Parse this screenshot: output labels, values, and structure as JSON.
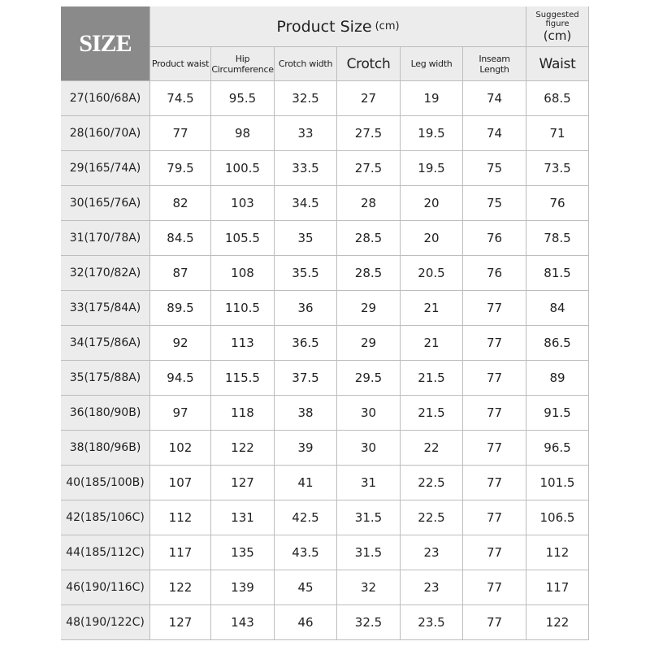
{
  "header": {
    "size": "SIZE",
    "product_size": "Product Size",
    "product_size_unit": "(cm)",
    "suggested": "Suggested figure",
    "suggested_unit": "(cm)",
    "columns": [
      "Product waist",
      "Hip Circumference",
      "Crotch width",
      "Crotch",
      "Leg width",
      "Inseam Length",
      "Waist"
    ]
  },
  "table": {
    "rows": [
      [
        "27(160/68A)",
        "74.5",
        "95.5",
        "32.5",
        "27",
        "19",
        "74",
        "68.5"
      ],
      [
        "28(160/70A)",
        "77",
        "98",
        "33",
        "27.5",
        "19.5",
        "74",
        "71"
      ],
      [
        "29(165/74A)",
        "79.5",
        "100.5",
        "33.5",
        "27.5",
        "19.5",
        "75",
        "73.5"
      ],
      [
        "30(165/76A)",
        "82",
        "103",
        "34.5",
        "28",
        "20",
        "75",
        "76"
      ],
      [
        "31(170/78A)",
        "84.5",
        "105.5",
        "35",
        "28.5",
        "20",
        "76",
        "78.5"
      ],
      [
        "32(170/82A)",
        "87",
        "108",
        "35.5",
        "28.5",
        "20.5",
        "76",
        "81.5"
      ],
      [
        "33(175/84A)",
        "89.5",
        "110.5",
        "36",
        "29",
        "21",
        "77",
        "84"
      ],
      [
        "34(175/86A)",
        "92",
        "113",
        "36.5",
        "29",
        "21",
        "77",
        "86.5"
      ],
      [
        "35(175/88A)",
        "94.5",
        "115.5",
        "37.5",
        "29.5",
        "21.5",
        "77",
        "89"
      ],
      [
        "36(180/90B)",
        "97",
        "118",
        "38",
        "30",
        "21.5",
        "77",
        "91.5"
      ],
      [
        "38(180/96B)",
        "102",
        "122",
        "39",
        "30",
        "22",
        "77",
        "96.5"
      ],
      [
        "40(185/100B)",
        "107",
        "127",
        "41",
        "31",
        "22.5",
        "77",
        "101.5"
      ],
      [
        "42(185/106C)",
        "112",
        "131",
        "42.5",
        "31.5",
        "22.5",
        "77",
        "106.5"
      ],
      [
        "44(185/112C)",
        "117",
        "135",
        "43.5",
        "31.5",
        "23",
        "77",
        "112"
      ],
      [
        "46(190/116C)",
        "122",
        "139",
        "45",
        "32",
        "23",
        "77",
        "117"
      ],
      [
        "48(190/122C)",
        "127",
        "143",
        "46",
        "32.5",
        "23.5",
        "77",
        "122"
      ]
    ]
  }
}
